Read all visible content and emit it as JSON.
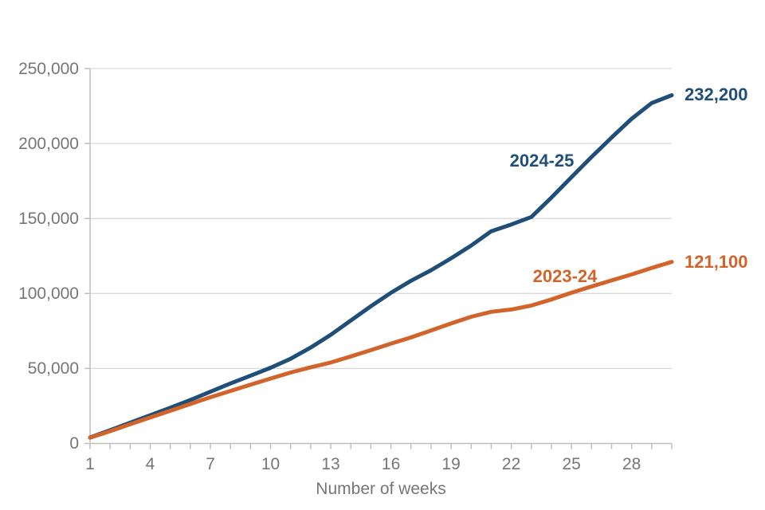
{
  "chart_data": {
    "type": "line",
    "title": "",
    "xlabel": "Number of weeks",
    "ylabel": "",
    "x": [
      1,
      2,
      3,
      4,
      5,
      6,
      7,
      8,
      9,
      10,
      11,
      12,
      13,
      14,
      15,
      16,
      17,
      18,
      19,
      20,
      21,
      22,
      23,
      24,
      25,
      26,
      27,
      28,
      29,
      30
    ],
    "x_tick_labels": [
      "1",
      "4",
      "7",
      "10",
      "13",
      "16",
      "19",
      "22",
      "25",
      "28"
    ],
    "x_tick_weeks": [
      1,
      4,
      7,
      10,
      13,
      16,
      19,
      22,
      25,
      28
    ],
    "xlim": [
      1,
      30
    ],
    "ylim": [
      0,
      250000
    ],
    "y_ticks": [
      0,
      50000,
      100000,
      150000,
      200000,
      250000
    ],
    "y_tick_labels": [
      "0",
      "50,000",
      "100,000",
      "150,000",
      "200,000",
      "250,000"
    ],
    "grid": "horizontal",
    "legend_position": "inline-labels-on-lines",
    "series": [
      {
        "name": "2024-25",
        "color": "#1F4E79",
        "end_label": "232,200",
        "values": [
          4000,
          8800,
          13800,
          18800,
          23800,
          29000,
          34500,
          40000,
          45200,
          50500,
          56500,
          64000,
          72500,
          82000,
          91500,
          100500,
          108500,
          115500,
          123500,
          132000,
          141500,
          146000,
          151000,
          164000,
          177500,
          191000,
          204000,
          216500,
          227000,
          232200
        ]
      },
      {
        "name": "2023-24",
        "color": "#D2632A",
        "end_label": "121,100",
        "values": [
          3800,
          8200,
          12800,
          17300,
          21800,
          26300,
          30800,
          35000,
          39200,
          43300,
          47300,
          50800,
          54000,
          58000,
          62200,
          66500,
          70700,
          75300,
          80000,
          84500,
          87800,
          89300,
          92000,
          96000,
          100500,
          104700,
          108700,
          112700,
          117000,
          121100
        ]
      }
    ]
  },
  "colors": {
    "gridline": "#D9D9D9",
    "axis": "#BFBFBF",
    "tick_text": "#767676",
    "background": "#FFFFFF"
  }
}
